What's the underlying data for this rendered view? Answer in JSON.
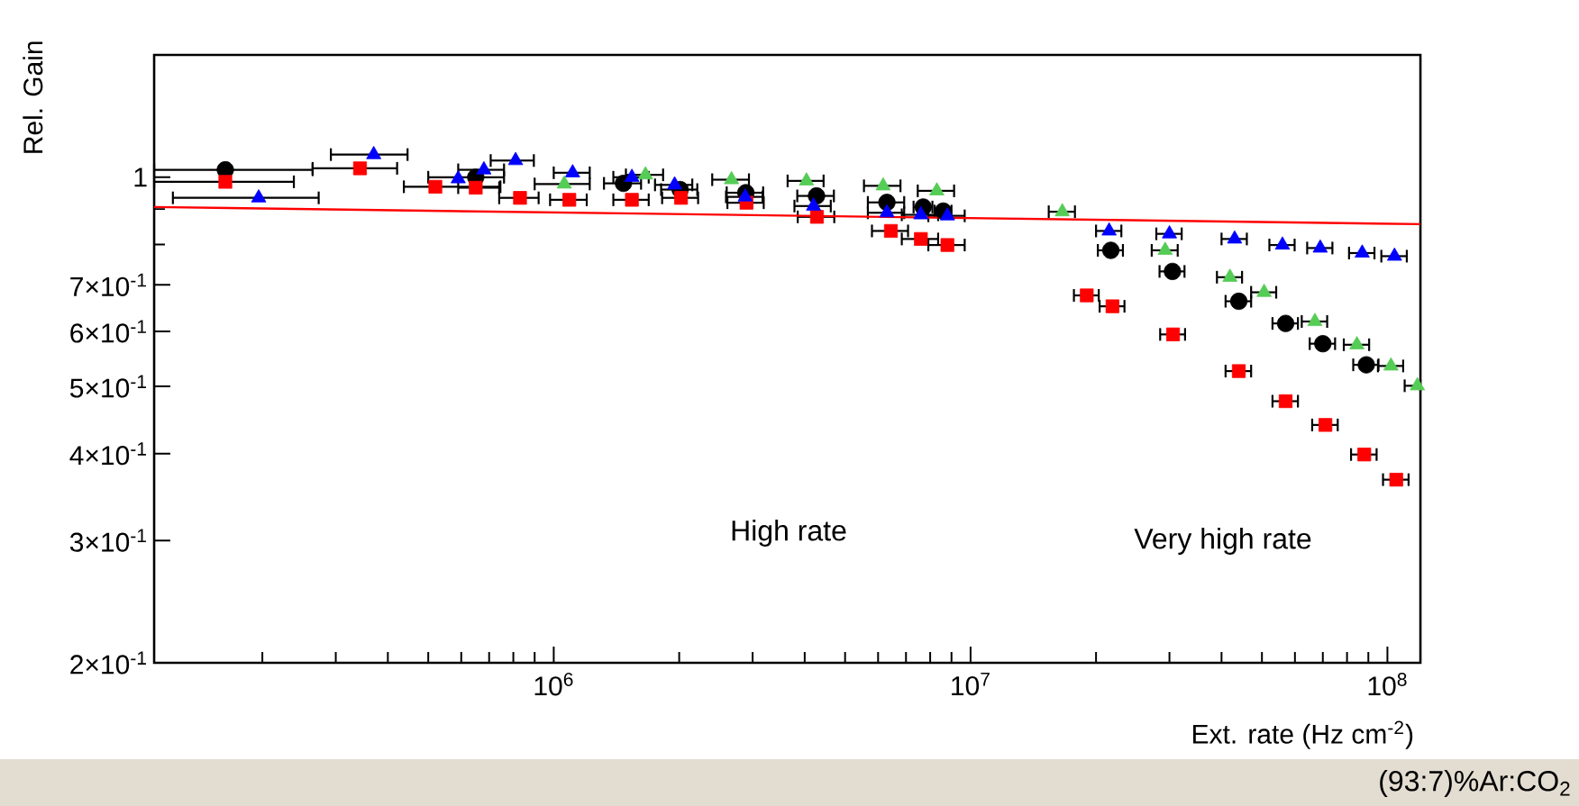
{
  "chart_data": {
    "type": "scatter",
    "xlabel": "Ext. rate (Hz cm$^{-2}$)",
    "ylabel": "Rel. Gain",
    "log": "xy",
    "grid": false,
    "xlim": [
      110000,
      120000000
    ],
    "ylim": [
      0.2,
      1.5
    ],
    "xticks": [
      {
        "value": 200000,
        "label": null
      },
      {
        "value": 300000,
        "label": null
      },
      {
        "value": 400000,
        "label": null
      },
      {
        "value": 500000,
        "label": null
      },
      {
        "value": 600000,
        "label": null
      },
      {
        "value": 700000,
        "label": null
      },
      {
        "value": 800000,
        "label": null
      },
      {
        "value": 900000,
        "label": null
      },
      {
        "value": 1000000,
        "label": "10$^{6}$"
      },
      {
        "value": 2000000,
        "label": null
      },
      {
        "value": 3000000,
        "label": null
      },
      {
        "value": 4000000,
        "label": null
      },
      {
        "value": 5000000,
        "label": null
      },
      {
        "value": 6000000,
        "label": null
      },
      {
        "value": 7000000,
        "label": null
      },
      {
        "value": 8000000,
        "label": null
      },
      {
        "value": 9000000,
        "label": null
      },
      {
        "value": 10000000,
        "label": "10$^{7}$"
      },
      {
        "value": 20000000,
        "label": null
      },
      {
        "value": 30000000,
        "label": null
      },
      {
        "value": 40000000,
        "label": null
      },
      {
        "value": 50000000,
        "label": null
      },
      {
        "value": 60000000,
        "label": null
      },
      {
        "value": 70000000,
        "label": null
      },
      {
        "value": 80000000,
        "label": null
      },
      {
        "value": 90000000,
        "label": null
      },
      {
        "value": 100000000,
        "label": "10$^{8}$"
      }
    ],
    "yticks": [
      {
        "value": 0.2,
        "label": "2×10$^{-1}$"
      },
      {
        "value": 0.3,
        "label": "3×10$^{-1}$"
      },
      {
        "value": 0.4,
        "label": "4×10$^{-1}$"
      },
      {
        "value": 0.5,
        "label": "5×10$^{-1}$"
      },
      {
        "value": 0.6,
        "label": "6×10$^{-1}$"
      },
      {
        "value": 0.7,
        "label": "7×10$^{-1}$"
      },
      {
        "value": 0.8,
        "label": null
      },
      {
        "value": 0.9,
        "label": null
      },
      1
    ],
    "annotations": [
      "High rate",
      "Very high rate",
      "(93:7)%Ar:CO$_{2}$"
    ],
    "series": [
      {
        "color": "#000000",
        "marker": "circle",
        "x": [
          163000,
          650000,
          1470000,
          2010000,
          2890000,
          4270000,
          6300000,
          7700000,
          8600000,
          21700000,
          30500000,
          44000000,
          57000000,
          70000000,
          89000000
        ],
        "values": [
          1.025,
          1.0,
          0.98,
          0.96,
          0.95,
          0.94,
          0.92,
          0.906,
          0.894,
          0.785,
          0.732,
          0.663,
          0.616,
          0.576,
          0.537
        ],
        "xerrors": [
          [
            110000,
            264000
          ],
          [
            500000,
            760000
          ],
          150000,
          200000,
          290000,
          430000,
          630000,
          400000,
          400000,
          1500000,
          2100000,
          3100000,
          4000000,
          4900000,
          6200000
        ]
      },
      {
        "color": "#ff0000",
        "marker": "square",
        "x": [
          163000,
          343000,
          520000,
          650000,
          830000,
          1090000,
          1540000,
          2020000,
          2900000,
          4280000,
          6440000,
          7600000,
          8800000,
          19000000,
          21900000,
          30600000,
          44000000,
          57000000,
          71000000,
          88000000,
          105000000
        ],
        "values": [
          0.985,
          1.03,
          0.969,
          0.966,
          0.934,
          0.928,
          0.928,
          0.934,
          0.919,
          0.877,
          0.837,
          0.815,
          0.799,
          0.676,
          0.652,
          0.594,
          0.526,
          0.476,
          0.44,
          0.399,
          0.367
        ],
        "xerrors": [
          [
            110000,
            238000
          ],
          [
            264000,
            421000
          ],
          [
            437000,
            745000
          ],
          [
            590000,
            740000
          ],
          [
            740000,
            920000
          ],
          110000,
          150000,
          200000,
          290000,
          430000,
          640000,
          760000,
          880000,
          1300000,
          1500000,
          2100000,
          3100000,
          4000000,
          5000000,
          6200000,
          7400000
        ]
      },
      {
        "color": "#0000ff",
        "marker": "triangle",
        "x": [
          196000,
          370000,
          590000,
          680000,
          810000,
          1110000,
          1540000,
          1950000,
          2880000,
          4200000,
          6300000,
          7600000,
          8800000,
          21500000,
          30000000,
          43000000,
          56000000,
          69000000,
          87000000,
          104000000
        ],
        "values": [
          0.934,
          1.078,
          0.995,
          1.025,
          1.057,
          1.015,
          1.0,
          0.975,
          0.937,
          0.909,
          0.889,
          0.883,
          0.88,
          0.837,
          0.829,
          0.815,
          0.799,
          0.791,
          0.778,
          0.77
        ],
        "xerrors": [
          [
            122000,
            273000
          ],
          [
            292000,
            446000
          ],
          null,
          [
            590000,
            760000
          ],
          [
            706000,
            896000
          ],
          110000,
          150000,
          200000,
          290000,
          420000,
          630000,
          760000,
          880000,
          1500000,
          2100000,
          3000000,
          3900000,
          4800000,
          6100000,
          7300000
        ]
      },
      {
        "color": "#55cc55",
        "marker": "triangle",
        "x": [
          1060000,
          1660000,
          2670000,
          4040000,
          6170000,
          8300000,
          16600000,
          29300000,
          41900000,
          50600000,
          67000000,
          84500000,
          102000000,
          118000000
        ],
        "values": [
          0.978,
          1.008,
          0.992,
          0.988,
          0.972,
          0.956,
          0.892,
          0.785,
          0.718,
          0.683,
          0.62,
          0.574,
          0.535,
          0.501
        ],
        "xerrors": [
          160000,
          170000,
          270000,
          400000,
          620000,
          830000,
          1200000,
          2100000,
          2900000,
          3500000,
          4700000,
          5900000,
          7100000,
          [
            110000000,
            120000000
          ]
        ]
      },
      {
        "type": "line",
        "color": "#ff0000",
        "marker": "none",
        "x": [
          110000,
          120000000
        ],
        "values": [
          0.906,
          0.856
        ]
      }
    ]
  }
}
